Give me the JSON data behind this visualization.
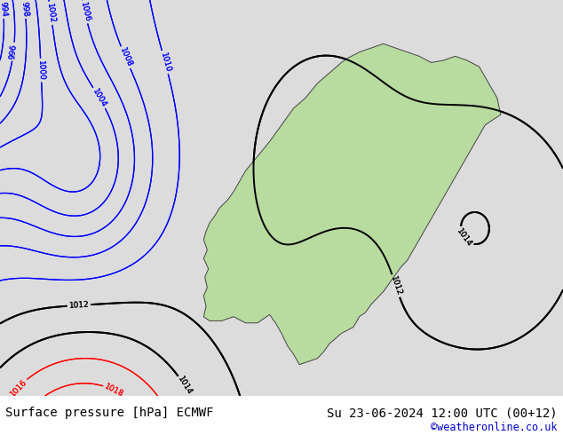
{
  "title_left": "Surface pressure [hPa] ECMWF",
  "title_right": "Su 23-06-2024 12:00 UTC (00+12)",
  "watermark": "©weatheronline.co.uk",
  "watermark_color": "#0000cc",
  "sea_color": "#dcdcdc",
  "land_color": "#b8dba0",
  "footer_bg": "#ffffff",
  "isobar_blue_color": "#0000ff",
  "isobar_black_color": "#000000",
  "isobar_red_color": "#ff0000",
  "figsize": [
    6.34,
    4.9
  ],
  "dpi": 100,
  "lon_min": -12,
  "lon_max": 35,
  "lat_min": 54,
  "lat_max": 73
}
